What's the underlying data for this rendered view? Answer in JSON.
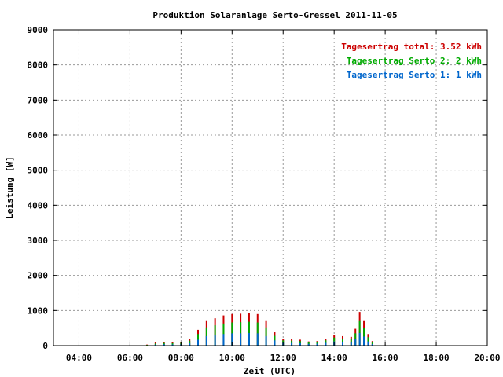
{
  "chart_data": {
    "type": "bar",
    "title": "Produktion Solaranlage Serto-Gressel 2011-11-05",
    "xlabel": "Zeit (UTC)",
    "ylabel": "Leistung [W]",
    "xlim": [
      "03:00",
      "20:00"
    ],
    "ylim": [
      0,
      9000
    ],
    "grid": true,
    "x_ticks": [
      "04:00",
      "06:00",
      "08:00",
      "10:00",
      "12:00",
      "14:00",
      "16:00",
      "18:00",
      "20:00"
    ],
    "y_ticks": [
      "0",
      "1000",
      "2000",
      "3000",
      "4000",
      "5000",
      "6000",
      "7000",
      "8000",
      "9000"
    ],
    "legend_position": "top-right",
    "legend": [
      {
        "label": "Tagesertrag total",
        "value": "3.52 kWh",
        "color": "#cc0000"
      },
      {
        "label": "Tagesertrag Serto 2",
        "value": "2 kWh",
        "color": "#00aa00"
      },
      {
        "label": "Tagesertrag Serto 1",
        "value": "1 kWh",
        "color": "#0066cc"
      }
    ],
    "x": [
      "06:40",
      "07:00",
      "07:20",
      "07:40",
      "08:00",
      "08:20",
      "08:40",
      "09:00",
      "09:20",
      "09:40",
      "10:00",
      "10:20",
      "10:40",
      "11:00",
      "11:20",
      "11:40",
      "12:00",
      "12:20",
      "12:40",
      "13:00",
      "13:20",
      "13:40",
      "14:00",
      "14:20",
      "14:40",
      "14:50",
      "15:00",
      "15:10",
      "15:20",
      "15:30"
    ],
    "series": [
      {
        "name": "Tagesertrag total",
        "color": "#cc0000",
        "values": [
          30,
          90,
          110,
          100,
          110,
          190,
          450,
          700,
          780,
          860,
          900,
          910,
          930,
          900,
          700,
          380,
          200,
          190,
          170,
          120,
          130,
          200,
          310,
          270,
          250,
          480,
          960,
          700,
          330,
          130
        ]
      },
      {
        "name": "Tagesertrag Serto 2",
        "color": "#00aa00",
        "values": [
          20,
          60,
          75,
          70,
          80,
          140,
          330,
          520,
          580,
          630,
          660,
          670,
          680,
          660,
          520,
          280,
          150,
          140,
          130,
          90,
          100,
          150,
          230,
          200,
          180,
          350,
          700,
          510,
          240,
          90
        ]
      },
      {
        "name": "Tagesertrag Serto 1",
        "color": "#0066cc",
        "values": [
          10,
          30,
          40,
          35,
          40,
          70,
          170,
          270,
          300,
          330,
          350,
          350,
          360,
          350,
          270,
          150,
          80,
          75,
          70,
          50,
          55,
          80,
          120,
          100,
          90,
          180,
          360,
          260,
          120,
          45
        ]
      }
    ]
  }
}
